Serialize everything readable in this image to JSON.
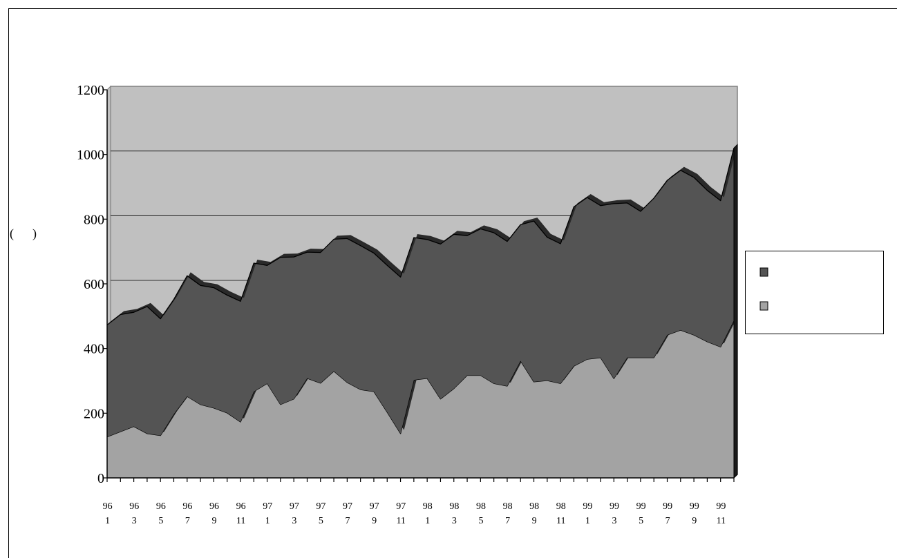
{
  "chart_data": {
    "type": "area",
    "stacked": true,
    "title": "",
    "xlabel": "",
    "ylabel": "(      )",
    "ylim": [
      0,
      1200
    ],
    "y_ticks": [
      0,
      200,
      400,
      600,
      800,
      1000,
      1200
    ],
    "grid": true,
    "legend_position": "right",
    "x_tick_labels": [
      [
        "96",
        "1"
      ],
      [
        "96",
        "3"
      ],
      [
        "96",
        "5"
      ],
      [
        "96",
        "7"
      ],
      [
        "96",
        "9"
      ],
      [
        "96",
        "11"
      ],
      [
        "97",
        "1"
      ],
      [
        "97",
        "3"
      ],
      [
        "97",
        "5"
      ],
      [
        "97",
        "7"
      ],
      [
        "97",
        "9"
      ],
      [
        "97",
        "11"
      ],
      [
        "98",
        "1"
      ],
      [
        "98",
        "3"
      ],
      [
        "98",
        "5"
      ],
      [
        "98",
        "7"
      ],
      [
        "98",
        "9"
      ],
      [
        "98",
        "11"
      ],
      [
        "99",
        "1"
      ],
      [
        "99",
        "3"
      ],
      [
        "99",
        "5"
      ],
      [
        "99",
        "7"
      ],
      [
        "99",
        "9"
      ],
      [
        "99",
        "11"
      ]
    ],
    "x": [
      "96-1",
      "96-2",
      "96-3",
      "96-4",
      "96-5",
      "96-6",
      "96-7",
      "96-8",
      "96-9",
      "96-10",
      "96-11",
      "96-12",
      "97-1",
      "97-2",
      "97-3",
      "97-4",
      "97-5",
      "97-6",
      "97-7",
      "97-8",
      "97-9",
      "97-10",
      "97-11",
      "97-12",
      "98-1",
      "98-2",
      "98-3",
      "98-4",
      "98-5",
      "98-6",
      "98-7",
      "98-8",
      "98-9",
      "98-10",
      "98-11",
      "98-12",
      "99-1",
      "99-2",
      "99-3",
      "99-4",
      "99-5",
      "99-6",
      "99-7",
      "99-8",
      "99-9",
      "99-10",
      "99-11",
      "99-12"
    ],
    "series": [
      {
        "color": "#a3a3a3",
        "values": [
          127,
          143,
          159,
          137,
          131,
          197,
          252,
          227,
          216,
          201,
          173,
          267,
          292,
          227,
          244,
          308,
          293,
          330,
          295,
          273,
          267,
          203,
          137,
          303,
          308,
          244,
          276,
          317,
          317,
          292,
          284,
          362,
          297,
          301,
          292,
          346,
          367,
          372,
          307,
          372,
          372,
          372,
          442,
          457,
          442,
          421,
          405,
          487
        ]
      },
      {
        "color": "#545454",
        "values": [
          346,
          362,
          353,
          393,
          361,
          355,
          373,
          368,
          372,
          364,
          373,
          397,
          365,
          455,
          439,
          390,
          404,
          408,
          445,
          445,
          428,
          454,
          484,
          440,
          429,
          479,
          477,
          432,
          453,
          466,
          447,
          421,
          497,
          443,
          432,
          492,
          500,
          470,
          541,
          478,
          452,
          493,
          478,
          494,
          487,
          468,
          452,
          533
        ]
      }
    ]
  },
  "legend": {
    "items": [
      {
        "label": "",
        "color": "#545454"
      },
      {
        "label": "",
        "color": "#a3a3a3"
      }
    ]
  },
  "colors": {
    "plot_background": "#c0c0c0",
    "frame": "#808080"
  }
}
